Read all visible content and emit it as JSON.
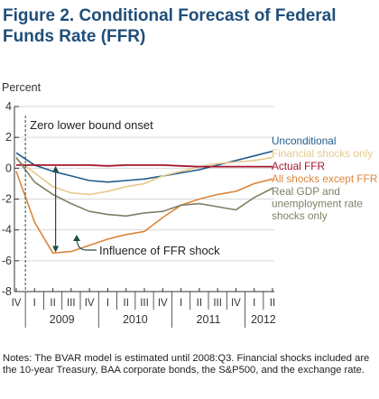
{
  "title": "Figure 2. Conditional Forecast of Federal Funds Rate (FFR)",
  "notes": "Notes: The BVAR model is estimated until 2008:Q3. Financial shocks included are the 10-year Treasury, BAA corporate bonds, the S&P500, and the exchange rate.",
  "colors": {
    "unconditional": "#1f5c8b",
    "financial": "#e6c98a",
    "actual": "#a3162d",
    "all_except_ffr": "#d9863a",
    "real_gdp": "#7f7f66",
    "annotation": "#1f4e4a",
    "axis": "#333333",
    "grid": "#d9d9d9"
  },
  "chart_data": {
    "type": "line",
    "ylabel": "Percent",
    "ylim": [
      -8,
      4
    ],
    "yticks": [
      4,
      2,
      0,
      -2,
      -4,
      -6,
      -8
    ],
    "x_quarters": [
      "IV",
      "I",
      "II",
      "III",
      "IV",
      "I",
      "II",
      "III",
      "IV",
      "I",
      "II",
      "III",
      "IV",
      "I",
      "II"
    ],
    "x_years": [
      {
        "label": "2009",
        "start": 1,
        "end": 4
      },
      {
        "label": "2010",
        "start": 5,
        "end": 8
      },
      {
        "label": "2011",
        "start": 9,
        "end": 12
      },
      {
        "label": "2012",
        "start": 13,
        "end": 14
      }
    ],
    "series": [
      {
        "name": "Unconditional",
        "key": "unconditional",
        "values": [
          1.0,
          0.2,
          -0.2,
          -0.5,
          -0.8,
          -0.9,
          -0.8,
          -0.7,
          -0.5,
          -0.3,
          -0.1,
          0.2,
          0.5,
          0.8,
          1.1
        ]
      },
      {
        "name": "Financial shocks only",
        "key": "financial",
        "values": [
          0.6,
          -0.3,
          -1.2,
          -1.6,
          -1.7,
          -1.5,
          -1.2,
          -1.0,
          -0.5,
          -0.2,
          0.1,
          0.3,
          0.4,
          0.5,
          0.7
        ]
      },
      {
        "name": "Actual FFR",
        "key": "actual",
        "values": [
          0.2,
          0.2,
          0.2,
          0.2,
          0.2,
          0.15,
          0.2,
          0.2,
          0.2,
          0.15,
          0.1,
          0.1,
          0.1,
          0.1,
          0.1
        ]
      },
      {
        "name": "All shocks except FFR",
        "key": "all_except_ffr",
        "values": [
          -0.2,
          -3.5,
          -5.5,
          -5.4,
          -5.0,
          -4.6,
          -4.3,
          -4.1,
          -3.2,
          -2.4,
          -2.0,
          -1.7,
          -1.5,
          -1.0,
          -0.7
        ]
      },
      {
        "name": "Real GDP and unemployment rate shocks only",
        "key": "real_gdp",
        "values": [
          0.7,
          -0.9,
          -1.7,
          -2.3,
          -2.8,
          -3.0,
          -3.1,
          -2.9,
          -2.8,
          -2.4,
          -2.3,
          -2.5,
          -2.7,
          -1.9,
          -1.3
        ]
      }
    ],
    "legend": [
      {
        "key": "unconditional",
        "lines": [
          "Unconditional"
        ]
      },
      {
        "key": "financial",
        "lines": [
          "Financial shocks only"
        ]
      },
      {
        "key": "actual",
        "lines": [
          "Actual FFR"
        ]
      },
      {
        "key": "all_except_ffr",
        "lines": [
          "All shocks except FFR"
        ]
      },
      {
        "key": "real_gdp",
        "lines": [
          "Real GDP and",
          "unemployment rate",
          "shocks only"
        ]
      }
    ],
    "annotations": [
      {
        "text": "Zero lower bound onset",
        "key": "zlb"
      },
      {
        "text": "Influence of FFR shock",
        "key": "ffr_shock"
      }
    ],
    "zlb_position": 0.5
  }
}
